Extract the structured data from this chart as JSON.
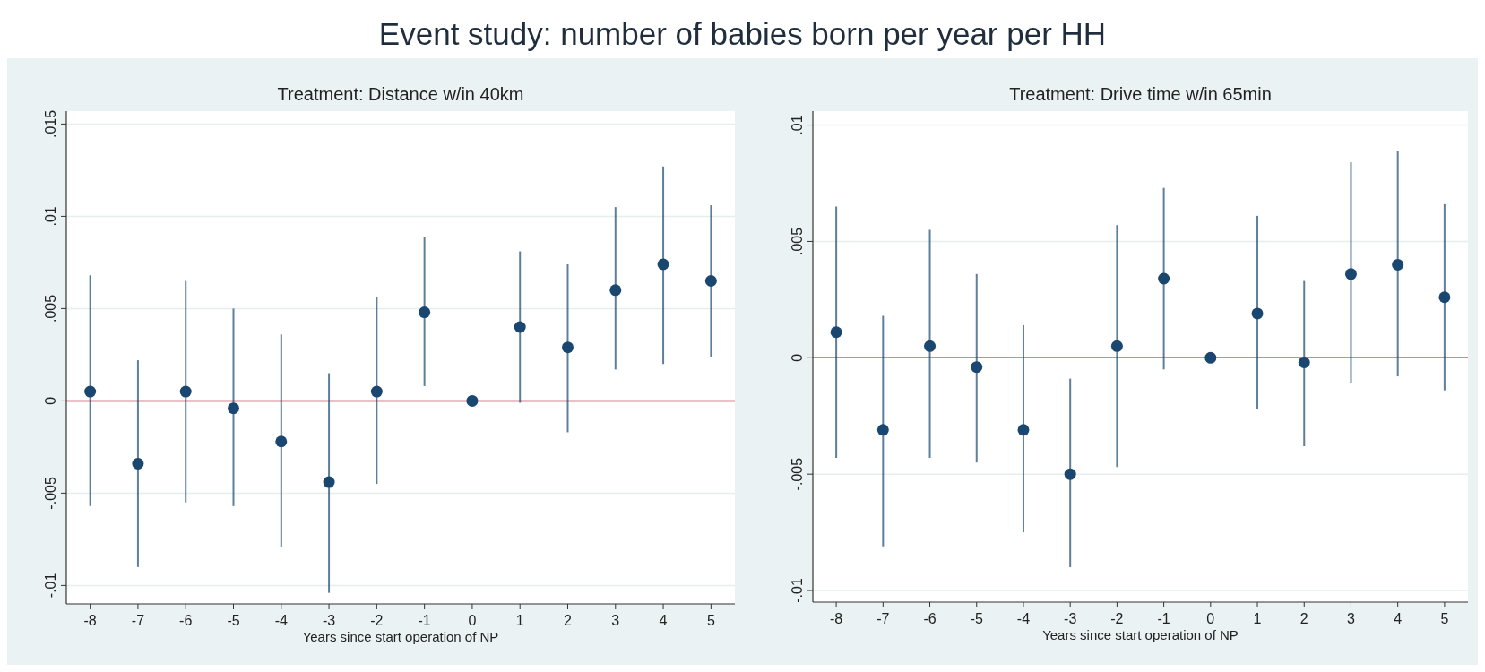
{
  "chart_data": [
    {
      "type": "scatter",
      "title": "Treatment: Distance w/in 40km",
      "xlabel": "Years since start operation of NP",
      "annotations": [
        "Event study: number of babies born per year per HH"
      ],
      "x": [
        -8,
        -7,
        -6,
        -5,
        -4,
        -3,
        -2,
        -1,
        0,
        1,
        2,
        3,
        4,
        5
      ],
      "xlim": [
        -8.5,
        5.5
      ],
      "xticks": [
        -8,
        -7,
        -6,
        -5,
        -4,
        -3,
        -2,
        -1,
        0,
        1,
        2,
        3,
        4,
        5
      ],
      "ylim": [
        -0.011,
        0.0157
      ],
      "yticks": [
        {
          "value": -0.01,
          "label": "-.01"
        },
        {
          "value": -0.005,
          "label": "-.005"
        },
        0,
        {
          "value": 0.005,
          "label": ".005"
        },
        {
          "value": 0.01,
          "label": ".01"
        },
        {
          "value": 0.015,
          "label": ".015"
        }
      ],
      "grid": "y",
      "marker": "circle",
      "ref_lines": [
        {
          "axis": "y",
          "value": 0,
          "color": "#c8102e"
        }
      ],
      "series": [
        {
          "color": "#1a476f",
          "values": [
            0.0005,
            -0.0034,
            0.0005,
            -0.0004,
            -0.0022,
            -0.0044,
            0.0005,
            0.0048,
            0,
            0.004,
            0.0029,
            0.006,
            0.0074,
            0.0065
          ],
          "errors": [
            [
              -0.0057,
              0.0068
            ],
            [
              -0.009,
              0.0022
            ],
            [
              -0.0055,
              0.0065
            ],
            [
              -0.0057,
              0.005
            ],
            [
              -0.0079,
              0.0036
            ],
            [
              -0.0104,
              0.0015
            ],
            [
              -0.0045,
              0.0056
            ],
            [
              0.0008,
              0.0089
            ],
            null,
            [
              -0.0001,
              0.0081
            ],
            [
              -0.0017,
              0.0074
            ],
            [
              0.0017,
              0.0105
            ],
            [
              0.002,
              0.0127
            ],
            [
              0.0024,
              0.0106
            ]
          ]
        }
      ]
    },
    {
      "type": "scatter",
      "title": "Treatment: Drive time w/in 65min",
      "xlabel": "Years since start operation of NP",
      "x": [
        -8,
        -7,
        -6,
        -5,
        -4,
        -3,
        -2,
        -1,
        0,
        1,
        2,
        3,
        4,
        5
      ],
      "xlim": [
        -8.5,
        5.5
      ],
      "xticks": [
        -8,
        -7,
        -6,
        -5,
        -4,
        -3,
        -2,
        -1,
        0,
        1,
        2,
        3,
        4,
        5
      ],
      "ylim": [
        -0.0105,
        0.0106
      ],
      "yticks": [
        {
          "value": -0.01,
          "label": "-.01"
        },
        {
          "value": -0.005,
          "label": "-.005"
        },
        0,
        {
          "value": 0.005,
          "label": ".005"
        },
        {
          "value": 0.01,
          "label": ".01"
        }
      ],
      "grid": "y",
      "marker": "circle",
      "ref_lines": [
        {
          "axis": "y",
          "value": 0,
          "color": "#c8102e"
        }
      ],
      "series": [
        {
          "color": "#1a476f",
          "values": [
            0.0011,
            -0.0031,
            0.0005,
            -0.0004,
            -0.0031,
            -0.005,
            0.0005,
            0.0034,
            0,
            0.0019,
            -0.0002,
            0.0036,
            0.004,
            0.0026
          ],
          "errors": [
            [
              -0.0043,
              0.0065
            ],
            [
              -0.0081,
              0.0018
            ],
            [
              -0.0043,
              0.0055
            ],
            [
              -0.0045,
              0.0036
            ],
            [
              -0.0075,
              0.0014
            ],
            [
              -0.009,
              -0.0009
            ],
            [
              -0.0047,
              0.0057
            ],
            [
              -0.0005,
              0.0073
            ],
            null,
            [
              -0.0022,
              0.0061
            ],
            [
              -0.0038,
              0.0033
            ],
            [
              -0.0011,
              0.0084
            ],
            [
              -0.0008,
              0.0089
            ],
            [
              -0.0014,
              0.0066
            ]
          ]
        }
      ]
    }
  ]
}
